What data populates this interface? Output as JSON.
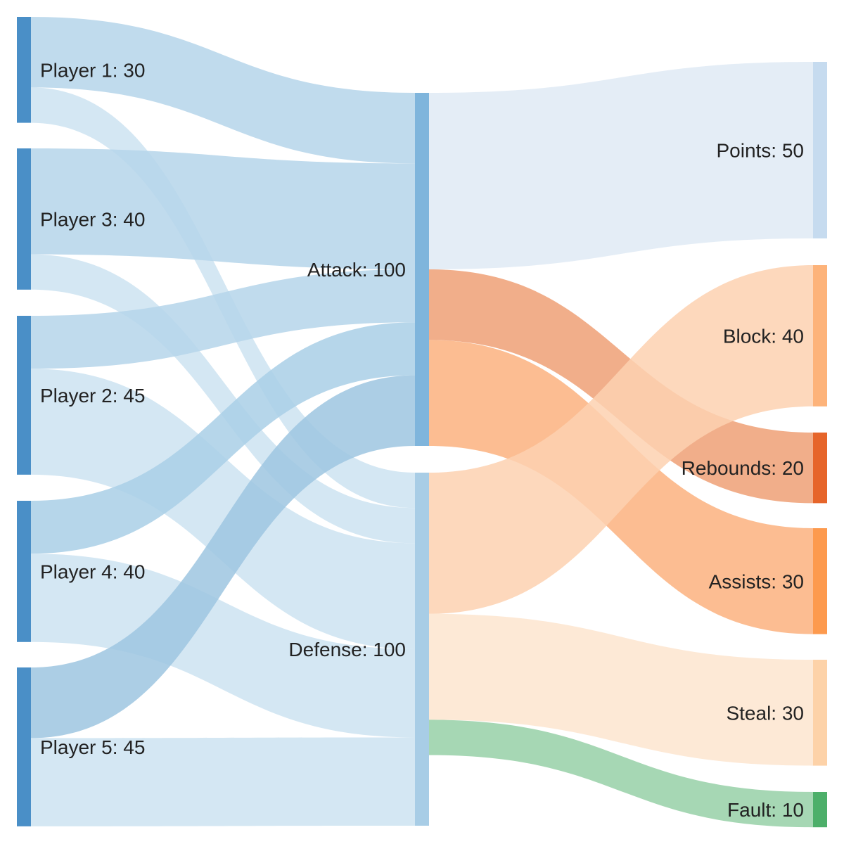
{
  "chart_data": {
    "type": "sankey",
    "nodes": [
      {
        "id": "p1",
        "label": "Player 1: 30",
        "value": 30,
        "color": "#4a8fc7"
      },
      {
        "id": "p3",
        "label": "Player 3: 40",
        "value": 40,
        "color": "#4a8fc7"
      },
      {
        "id": "p2",
        "label": "Player 2: 45",
        "value": 45,
        "color": "#4a8fc7"
      },
      {
        "id": "p4",
        "label": "Player 4: 40",
        "value": 40,
        "color": "#4a8fc7"
      },
      {
        "id": "p5",
        "label": "Player 5: 45",
        "value": 45,
        "color": "#4a8fc7"
      },
      {
        "id": "attack",
        "label": "Attack: 100",
        "value": 100,
        "color": "#7fb5dc"
      },
      {
        "id": "defense",
        "label": "Defense: 100",
        "value": 100,
        "color": "#a8cde6"
      },
      {
        "id": "points",
        "label": "Points: 50",
        "value": 50,
        "color": "#c6dbef"
      },
      {
        "id": "block",
        "label": "Block: 40",
        "value": 40,
        "color": "#fdb37a"
      },
      {
        "id": "rebounds",
        "label": "Rebounds: 20",
        "value": 20,
        "color": "#e6652a"
      },
      {
        "id": "assists",
        "label": "Assists: 30",
        "value": 30,
        "color": "#fd9a4e"
      },
      {
        "id": "steal",
        "label": "Steal: 30",
        "value": 30,
        "color": "#fdd2a8"
      },
      {
        "id": "fault",
        "label": "Fault: 10",
        "value": 10,
        "color": "#4daf6a"
      }
    ],
    "links": [
      {
        "source": "p1",
        "target": "attack",
        "value": 20,
        "color": "#b5d5ea"
      },
      {
        "source": "p1",
        "target": "defense",
        "value": 10,
        "color": "#cde3f1"
      },
      {
        "source": "p3",
        "target": "attack",
        "value": 30,
        "color": "#b5d5ea"
      },
      {
        "source": "p3",
        "target": "defense",
        "value": 10,
        "color": "#cde3f1"
      },
      {
        "source": "p2",
        "target": "attack",
        "value": 15,
        "color": "#b5d5ea"
      },
      {
        "source": "p2",
        "target": "defense",
        "value": 30,
        "color": "#cde3f1"
      },
      {
        "source": "p4",
        "target": "attack",
        "value": 15,
        "color": "#a9cfe6"
      },
      {
        "source": "p4",
        "target": "defense",
        "value": 25,
        "color": "#cde3f1"
      },
      {
        "source": "p5",
        "target": "attack",
        "value": 20,
        "color": "#9ec6e0"
      },
      {
        "source": "p5",
        "target": "defense",
        "value": 25,
        "color": "#cde3f1"
      },
      {
        "source": "attack",
        "target": "points",
        "value": 50,
        "color": "#dfeaf5"
      },
      {
        "source": "attack",
        "target": "rebounds",
        "value": 20,
        "color": "#eea075"
      },
      {
        "source": "attack",
        "target": "assists",
        "value": 30,
        "color": "#fcb27f"
      },
      {
        "source": "defense",
        "target": "block",
        "value": 40,
        "color": "#fdd1b0"
      },
      {
        "source": "defense",
        "target": "steal",
        "value": 30,
        "color": "#fde5cf"
      },
      {
        "source": "defense",
        "target": "fault",
        "value": 10,
        "color": "#97d0a7"
      }
    ]
  }
}
